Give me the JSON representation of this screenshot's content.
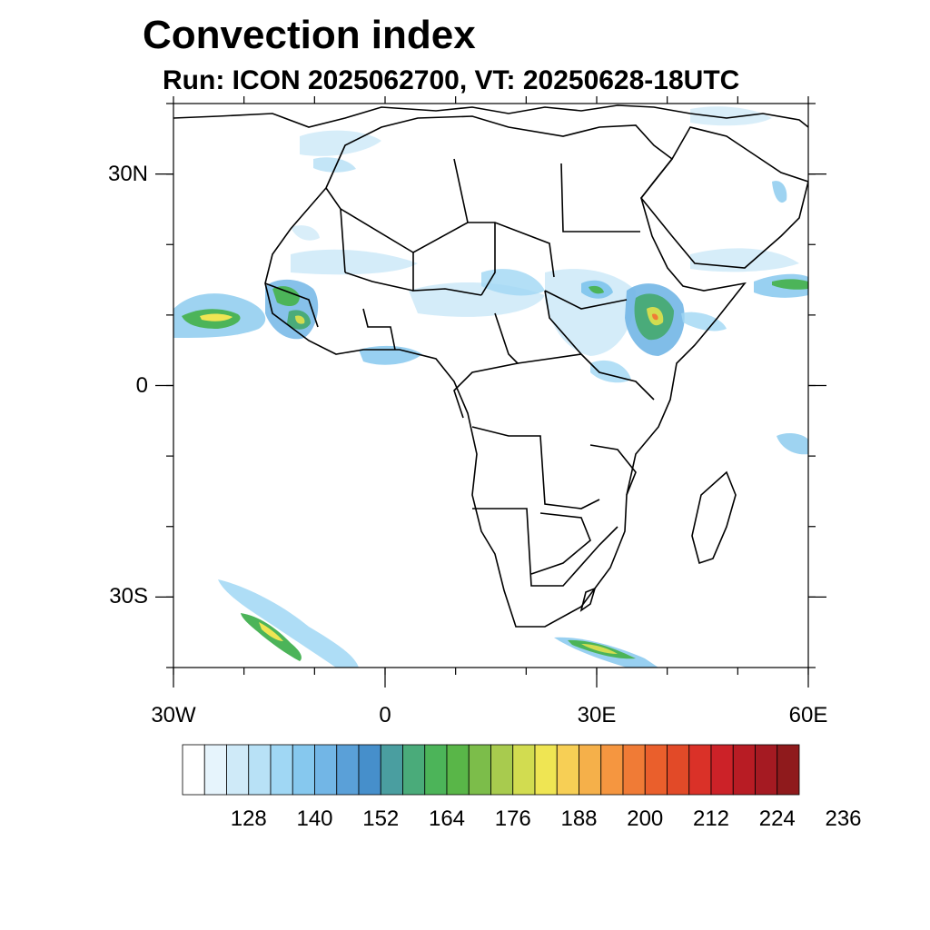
{
  "title": "Convection index",
  "subtitle": "Run: ICON 2025062700,  VT: 20250628-18UTC",
  "map": {
    "lon_range": [
      -30,
      60
    ],
    "lat_range": [
      -40,
      40
    ],
    "lat_ticks": [
      {
        "value": 30,
        "label": "30N"
      },
      {
        "value": 0,
        "label": "0"
      },
      {
        "value": -30,
        "label": "30S"
      }
    ],
    "lon_ticks": [
      {
        "value": -30,
        "label": "30W"
      },
      {
        "value": 0,
        "label": "0"
      },
      {
        "value": 30,
        "label": "30E"
      },
      {
        "value": 60,
        "label": "60E"
      }
    ]
  },
  "colorbar": {
    "colors": [
      "#ffffff",
      "#e6f4fc",
      "#cfeaf8",
      "#b8e1f6",
      "#a0d7f4",
      "#86c8ee",
      "#72b6e6",
      "#5aa0d8",
      "#468fcb",
      "#4a9ea0",
      "#4aab7a",
      "#4cb459",
      "#59b648",
      "#7cbd4a",
      "#a8cb4e",
      "#d2dc50",
      "#efe553",
      "#f7cf55",
      "#f5b04a",
      "#f59640",
      "#f07b36",
      "#ea5f2c",
      "#e24a28",
      "#da3128",
      "#cc2228",
      "#b81c24",
      "#a51a22",
      "#8f1a1c"
    ],
    "labels": [
      "128",
      "140",
      "152",
      "164",
      "176",
      "188",
      "200",
      "212",
      "224",
      "236"
    ]
  }
}
